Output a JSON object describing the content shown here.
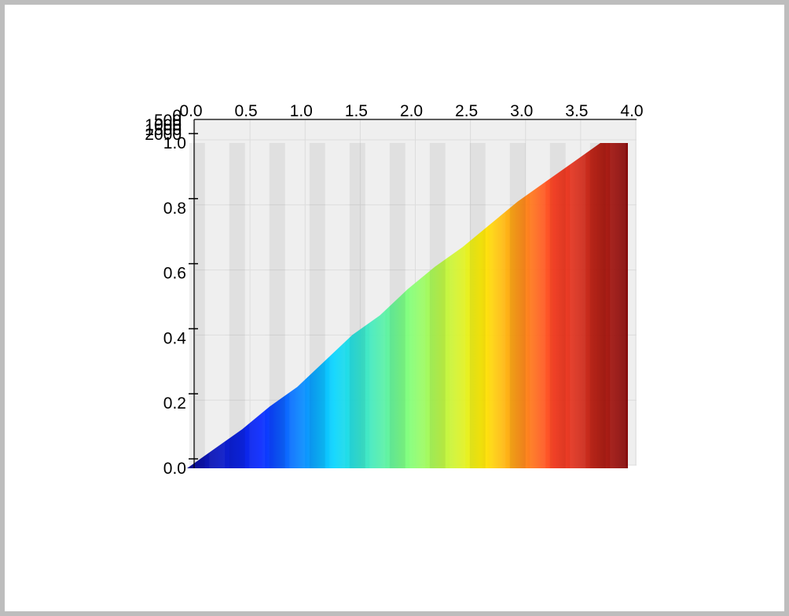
{
  "chart_data": {
    "type": "surface",
    "title": "",
    "xlabel": "",
    "ylabel": "",
    "zlabel": "",
    "x_ticks": [
      "0.0",
      "0.5",
      "1.0",
      "1.5",
      "2.0",
      "2.5",
      "3.0",
      "3.5",
      "4.0"
    ],
    "y_ticks": [
      "0.0",
      "0.2",
      "0.4",
      "0.6",
      "0.8",
      "1.0"
    ],
    "depth_ticks": [
      "0",
      "500",
      "1000",
      "1500",
      "2000"
    ],
    "xlim": [
      0,
      4
    ],
    "ylim": [
      0,
      1
    ],
    "depth_lim": [
      0,
      2000
    ],
    "grid": true,
    "colormap": [
      "#00008f",
      "#0022ff",
      "#00d4ff",
      "#7dff7a",
      "#ffee00",
      "#ff3b1f",
      "#800000"
    ],
    "surface_profile": {
      "x": [
        0.0,
        0.25,
        0.5,
        0.75,
        1.0,
        1.25,
        1.5,
        1.75,
        2.0,
        2.25,
        2.5,
        2.75,
        3.0,
        3.25,
        3.5,
        3.75,
        3.85,
        4.0
      ],
      "y": [
        0.0,
        0.06,
        0.12,
        0.19,
        0.25,
        0.33,
        0.41,
        0.47,
        0.55,
        0.62,
        0.68,
        0.75,
        0.82,
        0.88,
        0.94,
        1.0,
        1.0,
        1.0
      ]
    }
  }
}
